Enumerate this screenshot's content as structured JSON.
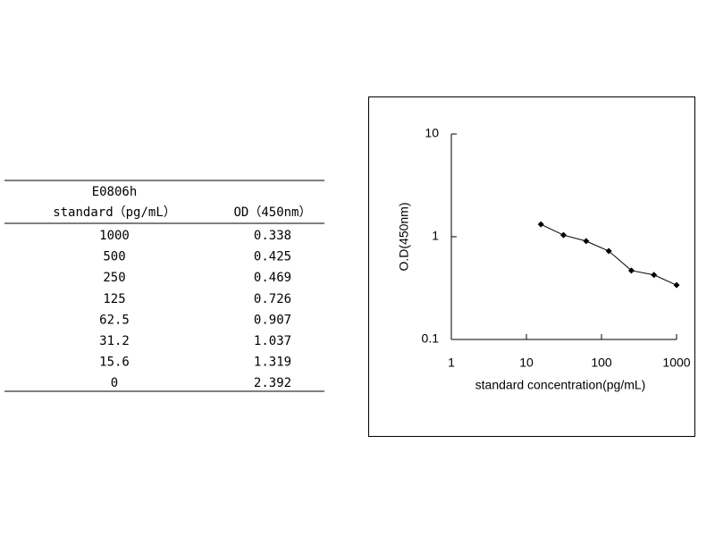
{
  "table": {
    "header": [
      [
        "E0806h",
        ""
      ],
      [
        "standard（pg/mL）",
        "OD（450nm）"
      ]
    ],
    "rows": [
      [
        1000,
        0.338
      ],
      [
        500,
        0.425
      ],
      [
        250,
        0.469
      ],
      [
        125,
        0.726
      ],
      [
        62.5,
        0.907
      ],
      [
        31.2,
        1.037
      ],
      [
        15.6,
        1.319
      ],
      [
        0,
        2.392
      ]
    ]
  },
  "chart_data": {
    "type": "line",
    "xlabel": "standard concentration(pg/mL)",
    "ylabel": "O.D(450nm)",
    "x": [
      15.6,
      31.2,
      62.5,
      125,
      250,
      500,
      1000
    ],
    "values": [
      1.319,
      1.037,
      0.907,
      0.726,
      0.469,
      0.425,
      0.338
    ],
    "color": "#000000",
    "xscale": "log",
    "yscale": "log",
    "xlim": [
      1,
      1000
    ],
    "ylim": [
      0.1,
      10
    ],
    "xticks": [
      1,
      10,
      100,
      1000
    ],
    "yticks": [
      0.1,
      1,
      10
    ]
  }
}
